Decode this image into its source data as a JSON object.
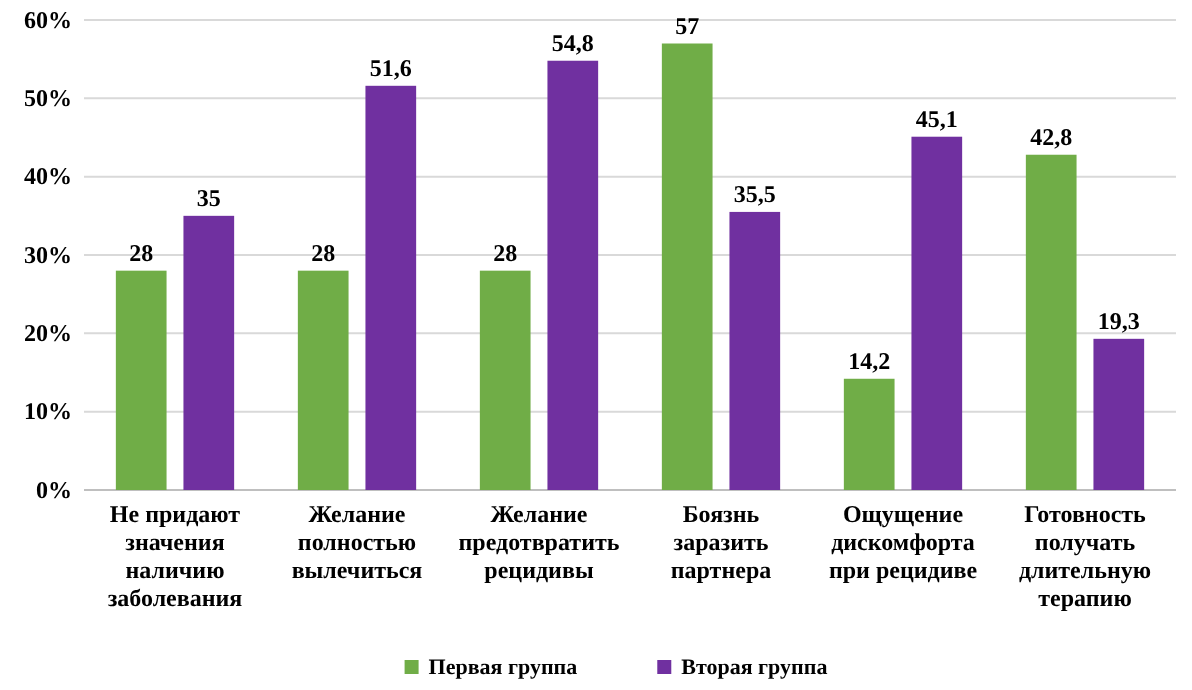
{
  "chart_data": {
    "type": "bar",
    "categories": [
      "Не придают значения наличию заболевания",
      "Желание полностью вылечиться",
      "Желание предотвратить рецидивы",
      "Боязнь заразить партнера",
      "Ощущение дискомфорта при рецидиве",
      "Готовность получать длительную терапию"
    ],
    "series": [
      {
        "name": "Первая группа",
        "color": "#70ad47",
        "values": [
          28,
          28,
          28,
          57,
          14.2,
          42.8
        ],
        "value_labels": [
          "28",
          "28",
          "28",
          "57",
          "14,2",
          "42,8"
        ]
      },
      {
        "name": "Вторая группа",
        "color": "#7030a0",
        "values": [
          35,
          51.6,
          54.8,
          35.5,
          45.1,
          19.3
        ],
        "value_labels": [
          "35",
          "51,6",
          "54,8",
          "35,5",
          "45,1",
          "19,3"
        ]
      }
    ],
    "ylim": [
      0,
      60
    ],
    "yticks": [
      {
        "value": 0,
        "label": "0%"
      },
      {
        "value": 10,
        "label": "10%"
      },
      {
        "value": 20,
        "label": "20%"
      },
      {
        "value": 30,
        "label": "30%"
      },
      {
        "value": 40,
        "label": "40%"
      },
      {
        "value": 50,
        "label": "50%"
      },
      {
        "value": 60,
        "label": "60%"
      }
    ],
    "grid": "y",
    "legend": "bottom"
  }
}
